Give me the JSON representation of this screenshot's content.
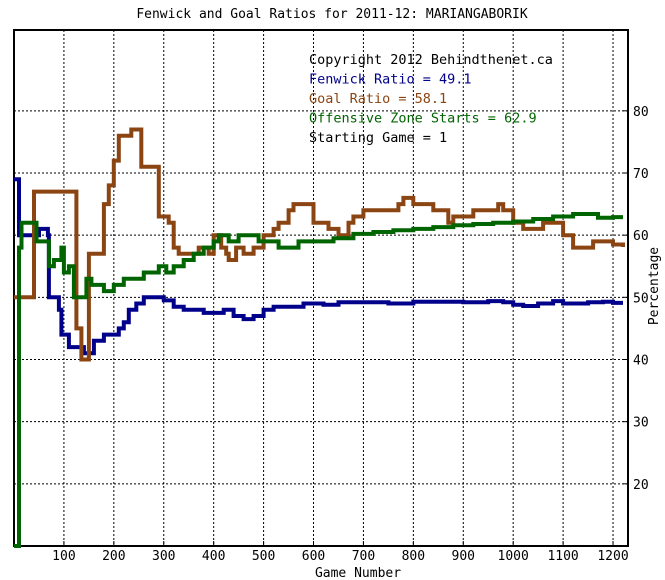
{
  "chart_data": {
    "type": "line",
    "title": "Fenwick and Goal Ratios for 2011-12: MARIANGABORIK",
    "xlabel": "Game Number",
    "ylabel": "Percentage",
    "xlim": [
      0,
      1230
    ],
    "ylim": [
      10,
      93
    ],
    "xticks": [
      100,
      200,
      300,
      400,
      500,
      600,
      700,
      800,
      900,
      1000,
      1100,
      1200
    ],
    "yticks": [
      20,
      30,
      40,
      50,
      60,
      70,
      80
    ],
    "grid": true,
    "legend_position": "top-right",
    "annotations": [
      {
        "text": "Copyright 2012 Behindthenet.ca",
        "color": "#000000"
      },
      {
        "text": "Fenwick Ratio = 49.1",
        "color": "#00008b"
      },
      {
        "text": "Goal Ratio = 58.1",
        "color": "#8b4513"
      },
      {
        "text": "Offensive Zone Starts = 62.9",
        "color": "#006400"
      },
      {
        "text": "Starting Game = 1",
        "color": "#000000"
      }
    ],
    "series": [
      {
        "name": "Fenwick Ratio",
        "color": "#00008b",
        "points": [
          [
            0,
            69
          ],
          [
            8,
            69
          ],
          [
            10,
            60
          ],
          [
            45,
            60
          ],
          [
            50,
            61
          ],
          [
            65,
            61
          ],
          [
            68,
            60
          ],
          [
            70,
            50
          ],
          [
            85,
            50
          ],
          [
            90,
            48
          ],
          [
            95,
            44
          ],
          [
            110,
            42
          ],
          [
            130,
            42
          ],
          [
            140,
            41
          ],
          [
            150,
            41
          ],
          [
            160,
            43
          ],
          [
            180,
            44
          ],
          [
            200,
            44
          ],
          [
            210,
            45
          ],
          [
            220,
            46
          ],
          [
            230,
            48
          ],
          [
            245,
            49
          ],
          [
            260,
            50
          ],
          [
            300,
            49.5
          ],
          [
            320,
            48.5
          ],
          [
            340,
            48
          ],
          [
            360,
            48
          ],
          [
            380,
            47.5
          ],
          [
            400,
            47.5
          ],
          [
            420,
            48
          ],
          [
            440,
            47
          ],
          [
            460,
            46.5
          ],
          [
            480,
            47
          ],
          [
            500,
            48
          ],
          [
            520,
            48.5
          ],
          [
            550,
            48.5
          ],
          [
            580,
            49
          ],
          [
            620,
            48.8
          ],
          [
            650,
            49.2
          ],
          [
            700,
            49.2
          ],
          [
            750,
            49
          ],
          [
            800,
            49.3
          ],
          [
            850,
            49.3
          ],
          [
            900,
            49.2
          ],
          [
            950,
            49.4
          ],
          [
            980,
            49.2
          ],
          [
            1000,
            48.8
          ],
          [
            1020,
            48.6
          ],
          [
            1050,
            49
          ],
          [
            1080,
            49.4
          ],
          [
            1100,
            49
          ],
          [
            1150,
            49.2
          ],
          [
            1180,
            49.3
          ],
          [
            1200,
            49.1
          ],
          [
            1220,
            49.1
          ]
        ]
      },
      {
        "name": "Goal Ratio",
        "color": "#8b4513",
        "points": [
          [
            0,
            50
          ],
          [
            25,
            50
          ],
          [
            40,
            67
          ],
          [
            115,
            67
          ],
          [
            125,
            45
          ],
          [
            135,
            40
          ],
          [
            145,
            40
          ],
          [
            150,
            57
          ],
          [
            170,
            57
          ],
          [
            180,
            65
          ],
          [
            190,
            68
          ],
          [
            200,
            72
          ],
          [
            210,
            76
          ],
          [
            235,
            77
          ],
          [
            255,
            71
          ],
          [
            280,
            71
          ],
          [
            290,
            63
          ],
          [
            310,
            62
          ],
          [
            320,
            58
          ],
          [
            330,
            57
          ],
          [
            360,
            57
          ],
          [
            370,
            58
          ],
          [
            390,
            57
          ],
          [
            400,
            60
          ],
          [
            415,
            58
          ],
          [
            425,
            57
          ],
          [
            430,
            56
          ],
          [
            445,
            58
          ],
          [
            460,
            57
          ],
          [
            480,
            58
          ],
          [
            500,
            60
          ],
          [
            520,
            61
          ],
          [
            530,
            62
          ],
          [
            550,
            64
          ],
          [
            560,
            65
          ],
          [
            590,
            65
          ],
          [
            600,
            62
          ],
          [
            630,
            61
          ],
          [
            650,
            60
          ],
          [
            670,
            62
          ],
          [
            680,
            63
          ],
          [
            700,
            64
          ],
          [
            750,
            64
          ],
          [
            770,
            65
          ],
          [
            780,
            66
          ],
          [
            800,
            65
          ],
          [
            820,
            65
          ],
          [
            840,
            64
          ],
          [
            860,
            64
          ],
          [
            870,
            62
          ],
          [
            880,
            63
          ],
          [
            900,
            63
          ],
          [
            920,
            64
          ],
          [
            950,
            64
          ],
          [
            970,
            65
          ],
          [
            980,
            64
          ],
          [
            1000,
            62
          ],
          [
            1020,
            61
          ],
          [
            1040,
            61
          ],
          [
            1060,
            62
          ],
          [
            1080,
            62
          ],
          [
            1100,
            60
          ],
          [
            1120,
            58
          ],
          [
            1140,
            58
          ],
          [
            1160,
            59
          ],
          [
            1180,
            59
          ],
          [
            1200,
            58.5
          ],
          [
            1220,
            58.1
          ]
        ]
      },
      {
        "name": "Offensive Zone Starts",
        "color": "#006400",
        "points": [
          [
            0,
            10
          ],
          [
            5,
            10
          ],
          [
            10,
            58
          ],
          [
            15,
            62
          ],
          [
            40,
            62
          ],
          [
            45,
            59
          ],
          [
            65,
            59
          ],
          [
            70,
            55
          ],
          [
            80,
            56
          ],
          [
            95,
            58
          ],
          [
            100,
            54
          ],
          [
            110,
            55
          ],
          [
            120,
            50
          ],
          [
            135,
            50
          ],
          [
            145,
            53
          ],
          [
            155,
            52
          ],
          [
            170,
            52
          ],
          [
            180,
            51
          ],
          [
            200,
            52
          ],
          [
            220,
            53
          ],
          [
            240,
            53
          ],
          [
            260,
            54
          ],
          [
            290,
            55
          ],
          [
            305,
            54
          ],
          [
            320,
            55
          ],
          [
            340,
            56
          ],
          [
            360,
            57
          ],
          [
            380,
            58
          ],
          [
            400,
            59
          ],
          [
            410,
            60
          ],
          [
            430,
            59
          ],
          [
            450,
            60
          ],
          [
            470,
            60
          ],
          [
            490,
            59
          ],
          [
            510,
            59
          ],
          [
            530,
            58
          ],
          [
            550,
            58
          ],
          [
            570,
            59
          ],
          [
            600,
            59
          ],
          [
            640,
            59.5
          ],
          [
            680,
            60.2
          ],
          [
            720,
            60.5
          ],
          [
            760,
            60.8
          ],
          [
            800,
            61
          ],
          [
            840,
            61.3
          ],
          [
            880,
            61.6
          ],
          [
            920,
            61.8
          ],
          [
            960,
            62
          ],
          [
            1000,
            62.2
          ],
          [
            1040,
            62.6
          ],
          [
            1080,
            63
          ],
          [
            1120,
            63.4
          ],
          [
            1150,
            63.4
          ],
          [
            1170,
            62.8
          ],
          [
            1200,
            62.9
          ],
          [
            1220,
            62.9
          ]
        ]
      }
    ]
  }
}
